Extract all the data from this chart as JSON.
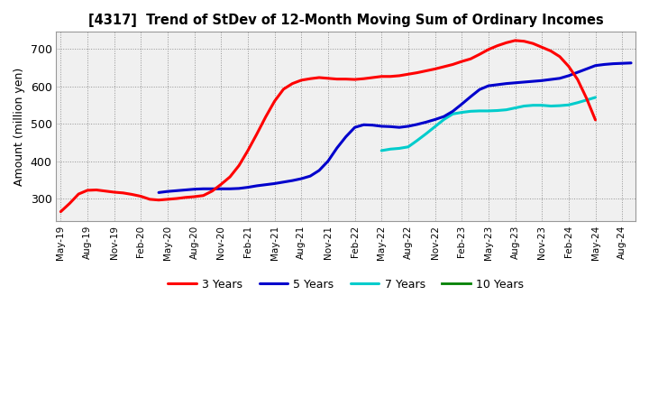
{
  "title": "[4317]  Trend of StDev of 12-Month Moving Sum of Ordinary Incomes",
  "ylabel": "Amount (million yen)",
  "background_color": "#ffffff",
  "plot_bg_color": "#f0f0f0",
  "ylim": [
    240,
    745
  ],
  "yticks": [
    300,
    400,
    500,
    600,
    700
  ],
  "series": {
    "3yr": {
      "color": "#ff0000",
      "label": "3 Years",
      "x": [
        0,
        1,
        2,
        3,
        4,
        5,
        6,
        7,
        8,
        9,
        10,
        11,
        12,
        13,
        14,
        15,
        16,
        17,
        18,
        19,
        20,
        21,
        22,
        23,
        24,
        25,
        26,
        27,
        28,
        29,
        30,
        31,
        32,
        33,
        34,
        35,
        36,
        37,
        38,
        39,
        40,
        41,
        42,
        43,
        44,
        45,
        46,
        47,
        48,
        49,
        50,
        51,
        52,
        53,
        54,
        55,
        56,
        57,
        58,
        59,
        60
      ],
      "y": [
        265,
        287,
        312,
        322,
        323,
        320,
        317,
        315,
        311,
        306,
        298,
        296,
        298,
        300,
        303,
        305,
        308,
        320,
        338,
        358,
        388,
        428,
        472,
        518,
        560,
        592,
        607,
        616,
        620,
        623,
        621,
        619,
        619,
        618,
        620,
        623,
        626,
        626,
        628,
        632,
        636,
        641,
        646,
        652,
        658,
        666,
        673,
        685,
        698,
        708,
        716,
        722,
        720,
        714,
        704,
        694,
        679,
        653,
        618,
        568,
        510
      ]
    },
    "5yr": {
      "color": "#0000cc",
      "label": "5 Years",
      "x": [
        11,
        12,
        13,
        14,
        15,
        16,
        17,
        18,
        19,
        20,
        21,
        22,
        23,
        24,
        25,
        26,
        27,
        28,
        29,
        30,
        31,
        32,
        33,
        34,
        35,
        36,
        37,
        38,
        39,
        40,
        41,
        42,
        43,
        44,
        45,
        46,
        47,
        48,
        49,
        50,
        51,
        52,
        53,
        54,
        55,
        56,
        57,
        58,
        59,
        60,
        61,
        62,
        63,
        64
      ],
      "y": [
        316,
        319,
        321,
        323,
        325,
        326,
        326,
        326,
        326,
        327,
        330,
        334,
        337,
        340,
        344,
        348,
        353,
        360,
        375,
        400,
        435,
        465,
        490,
        497,
        496,
        493,
        492,
        490,
        493,
        498,
        504,
        511,
        519,
        533,
        552,
        572,
        591,
        601,
        604,
        607,
        609,
        611,
        613,
        615,
        618,
        621,
        628,
        637,
        646,
        655,
        658,
        660,
        661,
        662
      ]
    },
    "7yr": {
      "color": "#00cccc",
      "label": "7 Years",
      "x": [
        36,
        37,
        38,
        39,
        40,
        41,
        42,
        43,
        44,
        45,
        46,
        47,
        48,
        49,
        50,
        51,
        52,
        53,
        54,
        55,
        56,
        57,
        58,
        59,
        60
      ],
      "y": [
        428,
        432,
        434,
        438,
        455,
        473,
        492,
        511,
        526,
        530,
        533,
        534,
        534,
        535,
        537,
        542,
        547,
        549,
        549,
        547,
        548,
        550,
        556,
        563,
        570
      ]
    },
    "10yr": {
      "color": "#008000",
      "label": "10 Years",
      "x": [],
      "y": []
    }
  },
  "xtick_labels": [
    "May-19",
    "Aug-19",
    "Nov-19",
    "Feb-20",
    "May-20",
    "Aug-20",
    "Nov-20",
    "Feb-21",
    "May-21",
    "Aug-21",
    "Nov-21",
    "Feb-22",
    "May-22",
    "Aug-22",
    "Nov-22",
    "Feb-23",
    "May-23",
    "Aug-23",
    "Nov-23",
    "Feb-24",
    "May-24",
    "Aug-24"
  ],
  "xtick_positions": [
    0,
    3,
    6,
    9,
    12,
    15,
    18,
    21,
    24,
    27,
    30,
    33,
    36,
    39,
    42,
    45,
    48,
    51,
    54,
    57,
    60,
    63
  ],
  "xlim": [
    -0.5,
    64.5
  ]
}
